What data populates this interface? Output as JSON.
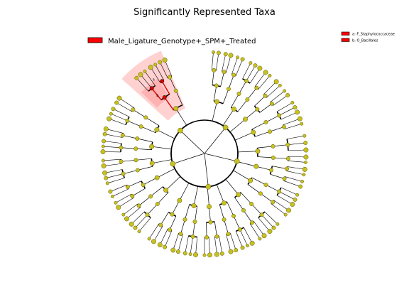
{
  "chart_data": {
    "type": "cladogram",
    "title": "Significantly Represented Taxa",
    "legend": {
      "placement": "top-left",
      "entries": [
        {
          "label": "Male_Ligature_Genotype+_SPM+_Treated",
          "color": "#ff0000"
        }
      ]
    },
    "key": {
      "placement": "top-right",
      "entries": [
        {
          "label": "a: F_Staphylococcaceae",
          "color": "#ff0000"
        },
        {
          "label": "b: O_Bacillales",
          "color": "#ff0000"
        }
      ]
    },
    "highlighted_clades": [
      {
        "label": "a",
        "taxon": "F_Staphylococcaceae",
        "color": "#ff0000"
      },
      {
        "label": "b",
        "taxon": "O_Bacillales",
        "color": "#ff0000"
      }
    ],
    "colors": {
      "node": "#c8c020",
      "node_edge": "#555500",
      "highlight_node": "#dd0000",
      "highlight_shade": "#ff9999",
      "branch": "#000000"
    }
  }
}
